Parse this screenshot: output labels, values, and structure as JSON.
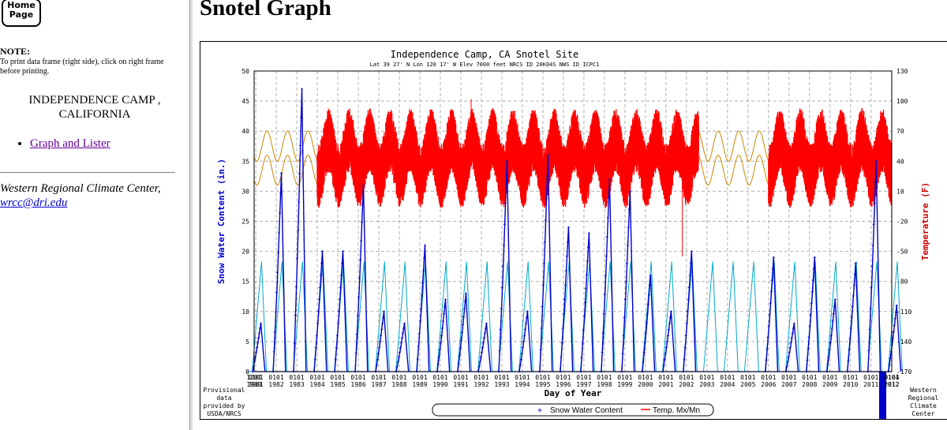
{
  "left": {
    "home_button": "Home Page",
    "note_heading": "NOTE:",
    "note_text": "To print data frame (right side), click on right frame before printing.",
    "station_name": "INDEPENDENCE CAMP , CALIFORNIA",
    "nav_link": "Graph and Lister",
    "credit_text": "Western Regional Climate Center,",
    "credit_email": "wrcc@dri.edu"
  },
  "right": {
    "page_title": "Snotel Graph"
  },
  "chart_data": {
    "type": "line",
    "title": "Independence Camp, CA   Snotel Site",
    "subtitle": "Lat 39 27' N    Lon 120 17' W    Elev  7000 feet          NRCS ID 20K04S    NWS ID ICPC1",
    "xlabel": "Day of Year",
    "ylabel": "Snow Water Content  (in.)",
    "y2label": "Temperature (F)",
    "ylim": [
      0,
      50
    ],
    "y2lim": [
      -170,
      130
    ],
    "y_ticks": [
      "0",
      "5",
      "10",
      "15",
      "20",
      "25",
      "30",
      "35",
      "40",
      "45",
      "50"
    ],
    "y2_ticks": [
      "-170",
      "-140",
      "-110",
      "-80",
      "-50",
      "-20",
      "10",
      "40",
      "70",
      "100",
      "130"
    ],
    "x_day_labels": [
      "1201",
      "0101",
      "0101",
      "0101",
      "0101",
      "0101",
      "0101",
      "0101",
      "0101",
      "0101",
      "0101",
      "0101",
      "0101",
      "0101",
      "0101",
      "0101",
      "0101",
      "0101",
      "0101",
      "0101",
      "0101",
      "0101",
      "0101",
      "0101",
      "0101",
      "0101",
      "0101",
      "0101",
      "0101",
      "0101",
      "0101",
      "0101",
      "0101",
      "0104"
    ],
    "x_year_labels": [
      "1980",
      "1981",
      "1982",
      "1983",
      "1984",
      "1985",
      "1986",
      "1987",
      "1988",
      "1989",
      "1990",
      "1991",
      "1992",
      "1993",
      "1994",
      "1995",
      "1996",
      "1997",
      "1998",
      "1999",
      "2000",
      "2001",
      "2002",
      "2003",
      "2004",
      "2005",
      "2006",
      "2007",
      "2008",
      "2009",
      "2010",
      "2011",
      "2012",
      "2012"
    ],
    "x_start_year": 1980.92,
    "x_end_year": 2012.01,
    "grid": true,
    "legend_position": "bottom-center",
    "legend": [
      "Snow Water Content",
      "Temp. Mx/Mn"
    ],
    "left_note": "Provisional data provided by USDA/NRCS",
    "right_note": "Western Regional Climate Center",
    "series": [
      {
        "name": "Snow Water Content",
        "color": "#0000cc",
        "kind": "annual_peak",
        "peaks": [
          {
            "year": 1981,
            "value": 8
          },
          {
            "year": 1982,
            "value": 33
          },
          {
            "year": 1983,
            "value": 47
          },
          {
            "year": 1984,
            "value": 20
          },
          {
            "year": 1985,
            "value": 20
          },
          {
            "year": 1986,
            "value": 31
          },
          {
            "year": 1987,
            "value": 10
          },
          {
            "year": 1988,
            "value": 8
          },
          {
            "year": 1989,
            "value": 21
          },
          {
            "year": 1990,
            "value": 12
          },
          {
            "year": 1991,
            "value": 13
          },
          {
            "year": 1992,
            "value": 8
          },
          {
            "year": 1993,
            "value": 35
          },
          {
            "year": 1994,
            "value": 10
          },
          {
            "year": 1995,
            "value": 36
          },
          {
            "year": 1996,
            "value": 24
          },
          {
            "year": 1997,
            "value": 23
          },
          {
            "year": 1998,
            "value": 32
          },
          {
            "year": 1999,
            "value": 30
          },
          {
            "year": 2000,
            "value": 16
          },
          {
            "year": 2001,
            "value": 10
          },
          {
            "year": 2002,
            "value": 20
          },
          {
            "year": 2006,
            "value": 19
          },
          {
            "year": 2007,
            "value": 8
          },
          {
            "year": 2008,
            "value": 19
          },
          {
            "year": 2009,
            "value": 12
          },
          {
            "year": 2010,
            "value": 18
          },
          {
            "year": 2011,
            "value": 35
          },
          {
            "year": 2012,
            "value": 11
          }
        ]
      },
      {
        "name": "Snow Water Content (normal)",
        "color": "#00aacc",
        "kind": "annual_normal",
        "peak_value": 18.3
      },
      {
        "name": "Temp. Mx/Mn",
        "color": "#ff0000",
        "kind": "temp_band",
        "mean": 43,
        "amplitude": 18,
        "spread": 32,
        "segments": [
          [
            1984.0,
            2002.6
          ],
          [
            2006.0,
            2012.0
          ]
        ],
        "spikes": [
          {
            "year": 1991.5,
            "value": 102
          },
          {
            "year": 2001.8,
            "value": -55
          }
        ]
      },
      {
        "name": "Temp. normal",
        "color": "#cc8800",
        "kind": "temp_normal",
        "mean": 43,
        "amplitude": 15,
        "offset": 12
      }
    ]
  }
}
